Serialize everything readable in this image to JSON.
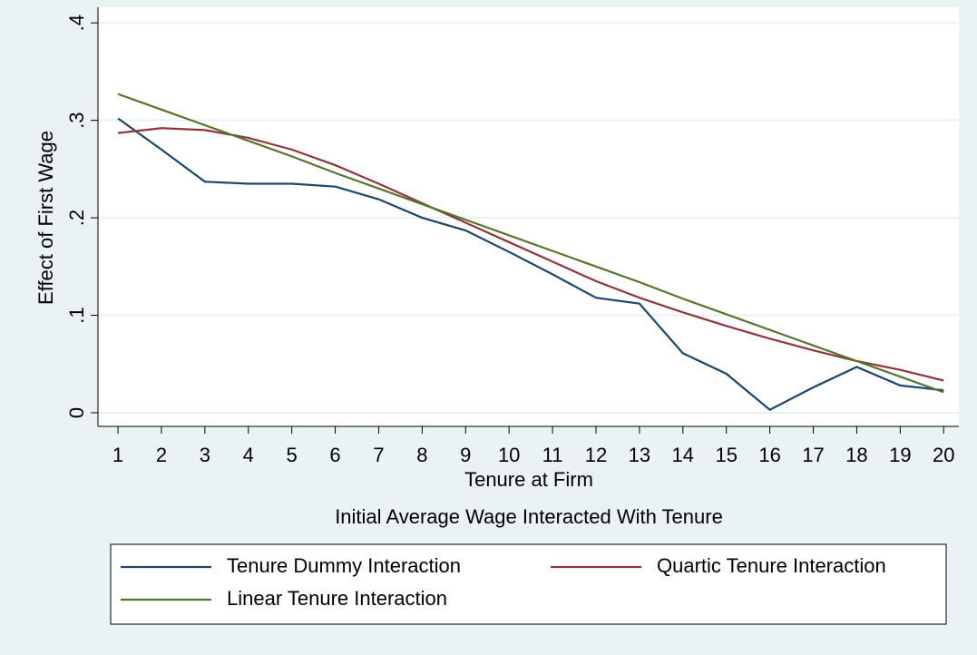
{
  "chart_data": {
    "type": "line",
    "x_label": "Tenure at Firm",
    "y_label": "Effect of First Wage",
    "note": "Initial Average Wage Interacted With Tenure",
    "x": [
      1,
      2,
      3,
      4,
      5,
      6,
      7,
      8,
      9,
      10,
      11,
      12,
      13,
      14,
      15,
      16,
      17,
      18,
      19,
      20
    ],
    "series": [
      {
        "name": "Tenure Dummy Interaction",
        "color": "#1a476f",
        "values": [
          0.302,
          0.27,
          0.237,
          0.235,
          0.235,
          0.232,
          0.219,
          0.2,
          0.187,
          0.165,
          0.142,
          0.118,
          0.112,
          0.061,
          0.04,
          0.003,
          0.026,
          0.047,
          0.028,
          0.023
        ]
      },
      {
        "name": "Quartic Tenure Interaction",
        "color": "#90353b",
        "values": [
          0.287,
          0.292,
          0.29,
          0.282,
          0.27,
          0.254,
          0.235,
          0.215,
          0.195,
          0.175,
          0.155,
          0.135,
          0.118,
          0.103,
          0.089,
          0.076,
          0.064,
          0.053,
          0.044,
          0.033
        ]
      },
      {
        "name": "Linear Tenure Interaction",
        "color": "#55752f",
        "values": [
          0.327,
          0.311,
          0.295,
          0.279,
          0.263,
          0.246,
          0.23,
          0.214,
          0.198,
          0.182,
          0.166,
          0.15,
          0.134,
          0.117,
          0.101,
          0.085,
          0.069,
          0.053,
          0.037,
          0.021
        ]
      }
    ],
    "xlim": [
      0.54,
      20.35
    ],
    "ylim": [
      -0.014,
      0.416
    ],
    "xticks": [
      1,
      2,
      3,
      4,
      5,
      6,
      7,
      8,
      9,
      10,
      11,
      12,
      13,
      14,
      15,
      16,
      17,
      18,
      19,
      20
    ],
    "yticks": [
      0,
      {
        "value": 0.1,
        "label": ".1"
      },
      {
        "value": 0.2,
        "label": ".2"
      },
      {
        "value": 0.3,
        "label": ".3"
      },
      {
        "value": 0.4,
        "label": ".4"
      }
    ],
    "grid": true,
    "legend_position": "bottom"
  }
}
